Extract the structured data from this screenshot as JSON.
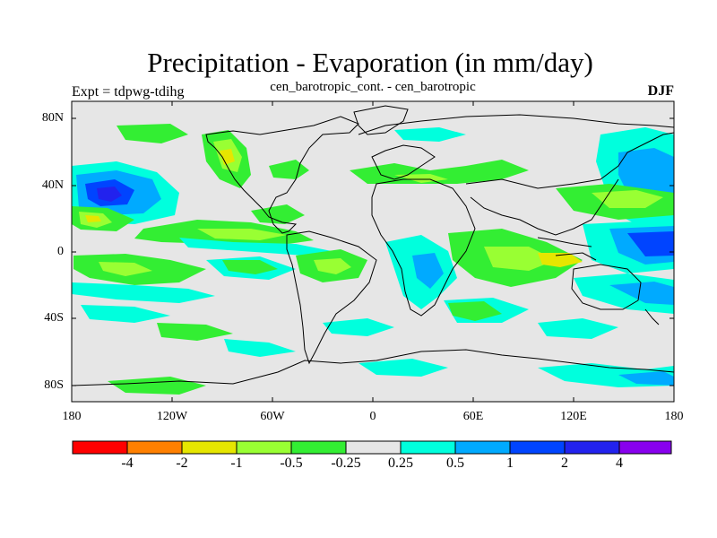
{
  "figure": {
    "title": "Precipitation - Evaporation (in mm/day)",
    "subtitle": "cen_barotropic_cont. - cen_barotropic",
    "left_label": "Expt = tdpwg-tdihg",
    "right_label": "DJF"
  },
  "axes": {
    "lat_ticks": [
      "80N",
      "40N",
      "0",
      "40S",
      "80S"
    ],
    "lon_ticks": [
      "180",
      "120W",
      "60W",
      "0",
      "60E",
      "120E",
      "180"
    ]
  },
  "colorbar": {
    "labels": [
      "-4",
      "-2",
      "-1",
      "-0.5",
      "-0.25",
      "0.25",
      "0.5",
      "1",
      "2",
      "4"
    ],
    "colors": [
      "#ff0000",
      "#ff8000",
      "#e6e600",
      "#99ff33",
      "#33ee33",
      "#e6e6e6",
      "#00ffdd",
      "#00aaff",
      "#0044ff",
      "#2222ee",
      "#8800ee"
    ]
  },
  "map": {
    "background_color": "#e6e6e6",
    "coastline_color": "#000000"
  }
}
